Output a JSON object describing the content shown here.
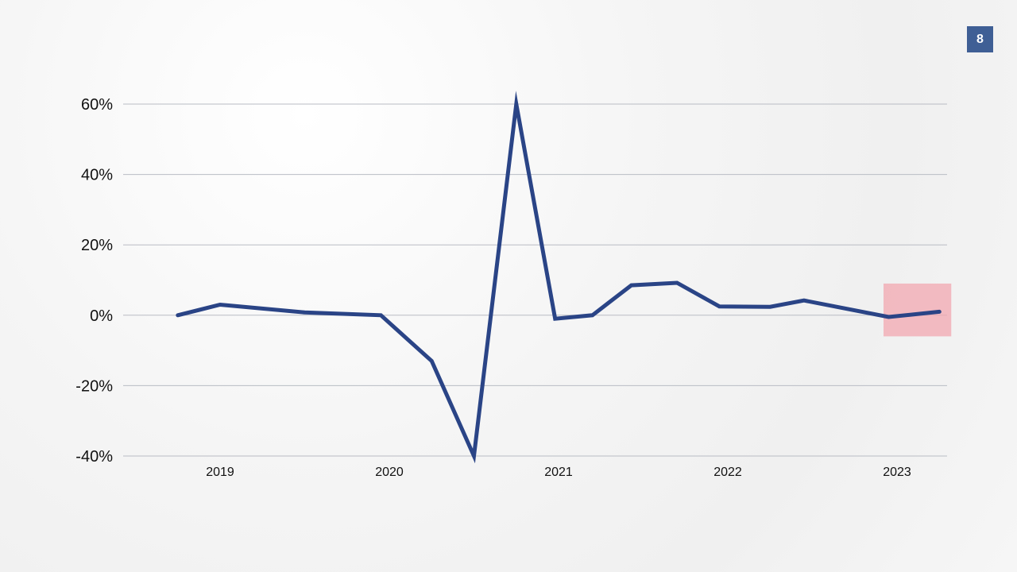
{
  "page": {
    "number": "8"
  },
  "colors": {
    "line": "#2a4486",
    "grid": "#b9bcc4",
    "badge": "#3f5f95",
    "highlight": "#f2a7b0"
  },
  "chart_data": {
    "type": "line",
    "title": "",
    "xlabel": "",
    "ylabel": "",
    "ylim": [
      -40,
      60
    ],
    "yticks": [
      60,
      40,
      20,
      0,
      -20,
      -40
    ],
    "ytick_labels": [
      "60%",
      "40%",
      "20%",
      "0%",
      "-20%",
      "-40%"
    ],
    "xlim": [
      2018.5,
      2023.3
    ],
    "xticks": [
      2019,
      2020,
      2021,
      2022,
      2023
    ],
    "xtick_labels": [
      "2019",
      "2020",
      "2021",
      "2022",
      "2023"
    ],
    "grid": true,
    "legend": "none",
    "series": [
      {
        "x": [
          2018.75,
          2019.0,
          2019.5,
          2019.95,
          2020.25,
          2020.5,
          2020.75,
          2020.98,
          2021.2,
          2021.43,
          2021.7,
          2021.95,
          2022.25,
          2022.45,
          2022.95,
          2023.25
        ],
        "values": [
          0.0,
          3.0,
          0.8,
          0.0,
          -13.0,
          -40.0,
          60.0,
          -1.0,
          0.0,
          8.5,
          9.2,
          2.5,
          2.4,
          4.2,
          -0.5,
          1.0
        ]
      }
    ],
    "highlight": {
      "x_range": [
        2023.0,
        2023.25
      ],
      "y_range": [
        -6,
        9
      ],
      "label": ""
    }
  }
}
